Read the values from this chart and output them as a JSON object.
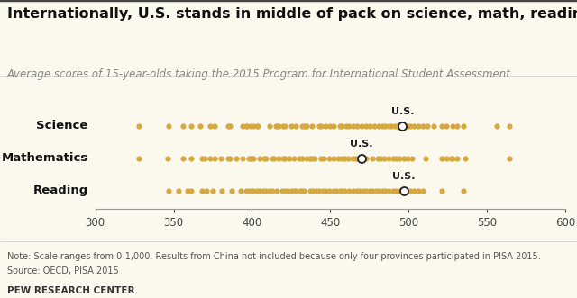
{
  "title": "Internationally, U.S. stands in middle of pack on science, math, reading scores",
  "subtitle": "Average scores of 15-year-olds taking the 2015 Program for International Student Assessment",
  "note": "Note: Scale ranges from 0-1,000. Results from China not included because only four provinces participated in PISA 2015.",
  "source": "Source: OECD, PISA 2015",
  "branding": "PEW RESEARCH CENTER",
  "categories": [
    "Science",
    "Mathematics",
    "Reading"
  ],
  "us_scores": [
    496,
    470,
    497
  ],
  "xlim": [
    300,
    600
  ],
  "xticks": [
    300,
    350,
    400,
    450,
    500,
    550,
    600
  ],
  "dot_color": "#D4A843",
  "us_dot_color": "#ffffff",
  "us_dot_edgecolor": "#222222",
  "science_scores": [
    328,
    347,
    356,
    361,
    367,
    373,
    376,
    385,
    386,
    394,
    396,
    397,
    399,
    401,
    403,
    404,
    411,
    415,
    416,
    417,
    420,
    421,
    425,
    428,
    432,
    433,
    434,
    435,
    438,
    443,
    444,
    447,
    450,
    452,
    456,
    457,
    460,
    462,
    465,
    467,
    470,
    473,
    475,
    478,
    481,
    483,
    485,
    487,
    489,
    491,
    493,
    496,
    499,
    501,
    503,
    506,
    509,
    512,
    516,
    521,
    524,
    528,
    531,
    535,
    556,
    564
  ],
  "math_scores": [
    328,
    346,
    356,
    361,
    368,
    370,
    373,
    376,
    380,
    385,
    386,
    390,
    394,
    398,
    399,
    400,
    401,
    405,
    408,
    409,
    413,
    414,
    417,
    420,
    421,
    424,
    427,
    430,
    432,
    435,
    437,
    438,
    440,
    444,
    446,
    449,
    452,
    455,
    457,
    459,
    461,
    464,
    466,
    467,
    470,
    471,
    473,
    477,
    480,
    482,
    484,
    487,
    490,
    492,
    494,
    497,
    499,
    502,
    511,
    521,
    524,
    527,
    528,
    531,
    536,
    564
  ],
  "reading_scores": [
    347,
    353,
    359,
    361,
    368,
    371,
    375,
    381,
    387,
    393,
    396,
    398,
    400,
    401,
    403,
    405,
    407,
    409,
    411,
    413,
    416,
    419,
    421,
    423,
    425,
    427,
    428,
    431,
    432,
    433,
    437,
    439,
    441,
    443,
    445,
    447,
    449,
    452,
    454,
    456,
    457,
    459,
    462,
    465,
    467,
    469,
    471,
    473,
    475,
    477,
    479,
    481,
    483,
    485,
    487,
    490,
    492,
    494,
    497,
    499,
    501,
    503,
    506,
    509,
    521,
    535
  ],
  "title_fontsize": 11.5,
  "subtitle_fontsize": 8.5,
  "label_fontsize": 9.5,
  "tick_fontsize": 8.5,
  "note_fontsize": 7.0,
  "background_color": "#FBF9EE",
  "fig_bg": "#FBF9EE",
  "top_border_color": "#444444"
}
